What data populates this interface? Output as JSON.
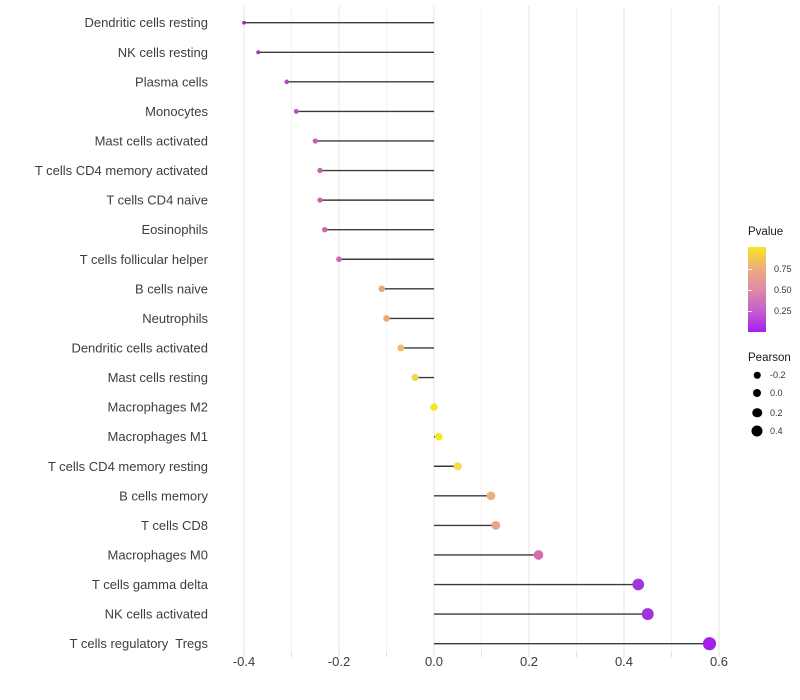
{
  "chart_data": {
    "type": "lollipop",
    "orientation": "horizontal",
    "title": "",
    "xlabel": "",
    "ylabel": "",
    "xlim": [
      -0.45,
      0.63
    ],
    "grid": "vertical-only",
    "x_major_ticks": {
      "values": [
        -0.4,
        -0.2,
        0.0,
        0.2,
        0.4,
        0.6
      ],
      "labels": [
        "-0.4",
        "-0.2",
        "0.0",
        "0.2",
        "0.4",
        "0.6"
      ]
    },
    "x_minor_ticks": [
      -0.3,
      -0.1,
      0.1,
      0.3,
      0.5
    ],
    "stem_origin": 0.0,
    "size_encoding": "Pearson correlation",
    "color_encoding": "Pvalue",
    "points": [
      {
        "label": "Dendritic cells resting",
        "pearson": -0.4,
        "color": "#9130C0"
      },
      {
        "label": "NK cells resting",
        "pearson": -0.37,
        "color": "#9C3BC6"
      },
      {
        "label": "Plasma cells",
        "pearson": -0.31,
        "color": "#B848C8"
      },
      {
        "label": "Monocytes",
        "pearson": -0.29,
        "color": "#BB4EC3"
      },
      {
        "label": "Mast cells activated",
        "pearson": -0.25,
        "color": "#C65CB8"
      },
      {
        "label": "T cells CD4 memory activated",
        "pearson": -0.24,
        "color": "#C75FB5"
      },
      {
        "label": "T cells CD4 naive",
        "pearson": -0.24,
        "color": "#C862B2"
      },
      {
        "label": "Eosinophils",
        "pearson": -0.23,
        "color": "#C964B0"
      },
      {
        "label": "T cells follicular helper",
        "pearson": -0.2,
        "color": "#CD6BA5"
      },
      {
        "label": "B cells naive",
        "pearson": -0.11,
        "color": "#E7A877"
      },
      {
        "label": "Neutrophils",
        "pearson": -0.1,
        "color": "#E8A976"
      },
      {
        "label": "Dendritic cells activated",
        "pearson": -0.07,
        "color": "#EEBE64"
      },
      {
        "label": "Mast cells resting",
        "pearson": -0.04,
        "color": "#F2D553"
      },
      {
        "label": "Macrophages M2",
        "pearson": 0.0,
        "color": "#F5E722"
      },
      {
        "label": "Macrophages M1",
        "pearson": 0.01,
        "color": "#F5E81F"
      },
      {
        "label": "T cells CD4 memory resting",
        "pearson": 0.05,
        "color": "#F3DE45"
      },
      {
        "label": "B cells memory",
        "pearson": 0.12,
        "color": "#EFB078"
      },
      {
        "label": "T cells CD8",
        "pearson": 0.13,
        "color": "#ECA487"
      },
      {
        "label": "Macrophages M0",
        "pearson": 0.22,
        "color": "#D06FAC"
      },
      {
        "label": "T cells gamma delta",
        "pearson": 0.43,
        "color": "#A138DC"
      },
      {
        "label": "NK cells activated",
        "pearson": 0.45,
        "color": "#A133E3"
      },
      {
        "label": "T cells regulatory  Tregs",
        "pearson": 0.58,
        "color": "#A51FEA"
      }
    ],
    "legend": {
      "pvalue": {
        "title": "Pvalue",
        "range": [
          0,
          1
        ],
        "ticks": [
          {
            "label": "0.75",
            "frac_from_top": 0.26
          },
          {
            "label": "0.50",
            "frac_from_top": 0.505
          },
          {
            "label": "0.25",
            "frac_from_top": 0.75
          }
        ],
        "gradient_top_to_bottom": [
          "#F8E621",
          "#EDAE7C",
          "#DE8BA4",
          "#C45FCB",
          "#A81EF0"
        ]
      },
      "pearson": {
        "title": "Pearson",
        "dot_color": "#000000",
        "items": [
          {
            "label": "-0.2",
            "diameter": 6.5
          },
          {
            "label": "0.0",
            "diameter": 8
          },
          {
            "label": "0.2",
            "diameter": 9.5
          },
          {
            "label": "0.4",
            "diameter": 11
          }
        ]
      }
    },
    "style": {
      "stem_color": "#3A3A3A",
      "axis_text_color": "#3D3D3D",
      "major_grid_color": "#E5E5E5",
      "minor_grid_color": "#F3F3F3",
      "tick_mark_color": "#DCDCDC",
      "background": "#FFFFFF"
    }
  }
}
